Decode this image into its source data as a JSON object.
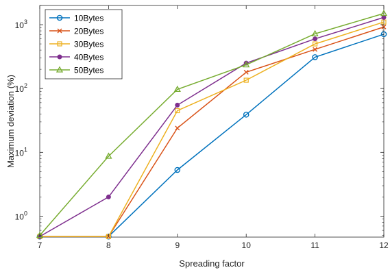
{
  "chart_data": {
    "type": "line",
    "title": "",
    "xlabel": "Spreading factor",
    "ylabel": "Maximum deviation (%)",
    "yscale": "log",
    "xlim": [
      7,
      12
    ],
    "ylim": [
      0.47,
      2000
    ],
    "x": [
      7,
      8,
      9,
      10,
      11,
      12
    ],
    "x_ticks": [
      "7",
      "8",
      "9",
      "10",
      "11",
      "12"
    ],
    "y_ticks": [
      {
        "value": 1,
        "base": "10",
        "exp": "0"
      },
      {
        "value": 10,
        "base": "10",
        "exp": "1"
      },
      {
        "value": 100,
        "base": "10",
        "exp": "2"
      },
      {
        "value": 1000,
        "base": "10",
        "exp": "3"
      }
    ],
    "grid": false,
    "legend_position": "top-left",
    "series": [
      {
        "name": "10Bytes",
        "color": "#0072BD",
        "marker": "circle",
        "values": [
          0.48,
          0.48,
          5.3,
          39,
          310,
          710
        ]
      },
      {
        "name": "20Bytes",
        "color": "#D95319",
        "marker": "x",
        "values": [
          0.48,
          0.48,
          24,
          180,
          410,
          920
        ]
      },
      {
        "name": "30Bytes",
        "color": "#EDB120",
        "marker": "square",
        "values": [
          0.48,
          0.48,
          45,
          135,
          500,
          1100
        ]
      },
      {
        "name": "40Bytes",
        "color": "#7E2F8E",
        "marker": "dot",
        "values": [
          0.48,
          2.0,
          55,
          250,
          600,
          1300
        ]
      },
      {
        "name": "50Bytes",
        "color": "#77AC30",
        "marker": "triangle",
        "values": [
          0.5,
          8.7,
          97,
          235,
          720,
          1500
        ]
      }
    ]
  }
}
